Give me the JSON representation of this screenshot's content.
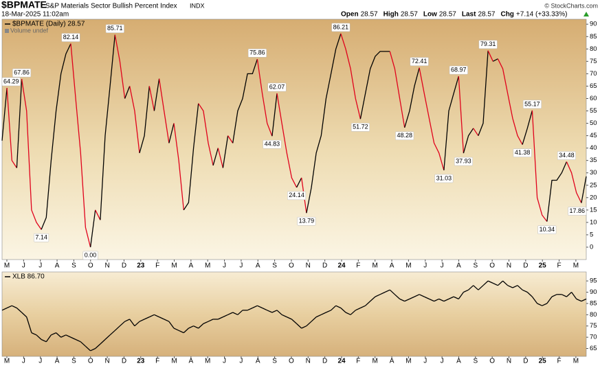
{
  "header": {
    "symbol": "$BPMATE",
    "name": "S&P Materials Sector Bullish Percent Index",
    "exchange": "INDX",
    "copyright": "© StockCharts.com",
    "date": "18-Mar-2025 11:02am",
    "quote": [
      [
        "Open",
        "28.57"
      ],
      [
        "High",
        "28.57"
      ],
      [
        "Low",
        "28.57"
      ],
      [
        "Last",
        "28.57"
      ],
      [
        "Chg",
        "+7.14 (+33.33%)"
      ]
    ]
  },
  "chart_data": [
    {
      "type": "line",
      "ylim": [
        -5,
        92
      ],
      "yticks": [
        0,
        5,
        10,
        15,
        20,
        25,
        30,
        35,
        40,
        45,
        50,
        55,
        60,
        65,
        70,
        75,
        80,
        85,
        90
      ],
      "xticks": [
        "M",
        "J",
        "J",
        "A",
        "S",
        "O",
        "N",
        "D",
        "23",
        "F",
        "M",
        "A",
        "M",
        "J",
        "J",
        "A",
        "S",
        "O",
        "N",
        "D",
        "24",
        "F",
        "M",
        "A",
        "M",
        "J",
        "J",
        "A",
        "S",
        "O",
        "N",
        "D",
        "25",
        "F",
        "M"
      ],
      "legend_note": "Volume undef",
      "series": [
        {
          "name": "$BPMATE (Daily) 28.57",
          "color": "#000000",
          "down_color": "#e0001b",
          "values": [
            43,
            64.29,
            35,
            32,
            67.86,
            55,
            15,
            10,
            7.14,
            12,
            35,
            55,
            70,
            78,
            82.14,
            60,
            38,
            8,
            0,
            15,
            11,
            45,
            65,
            85.71,
            75,
            60,
            65,
            55,
            38,
            45,
            65,
            55,
            68,
            55,
            42,
            50,
            35,
            15,
            18,
            40,
            58,
            55,
            42,
            33,
            40,
            32,
            45,
            42,
            55,
            60,
            70,
            70,
            75.86,
            62,
            50,
            44.83,
            62.07,
            50,
            38,
            28,
            24.14,
            28,
            13.79,
            24,
            38,
            45,
            60,
            70,
            80,
            86.21,
            80,
            72,
            60,
            51.72,
            62,
            72,
            77,
            79,
            79,
            79,
            72,
            60,
            48.28,
            55,
            65,
            72.41,
            62,
            52,
            42,
            38,
            31.03,
            55,
            62,
            68.97,
            37.93,
            45,
            48,
            45,
            50,
            79.31,
            75,
            76,
            72,
            62,
            52,
            45,
            41.38,
            48,
            55.17,
            20,
            13,
            10.34,
            27,
            27,
            30,
            34.48,
            30,
            22,
            17.86,
            28.57
          ],
          "value_labels": [
            null,
            "64.29",
            null,
            null,
            "67.86",
            null,
            null,
            null,
            "7.14",
            null,
            null,
            null,
            null,
            null,
            "82.14",
            null,
            null,
            null,
            "0.00",
            null,
            null,
            null,
            null,
            "85.71",
            null,
            null,
            null,
            null,
            null,
            null,
            null,
            null,
            null,
            null,
            null,
            null,
            null,
            null,
            null,
            null,
            null,
            null,
            null,
            null,
            null,
            null,
            null,
            null,
            null,
            null,
            null,
            null,
            "75.86",
            null,
            null,
            "44.83",
            "62.07",
            null,
            null,
            null,
            "24.14",
            null,
            "13.79",
            null,
            null,
            null,
            null,
            null,
            null,
            "86.21",
            null,
            null,
            null,
            "51.72",
            null,
            null,
            null,
            null,
            null,
            null,
            null,
            null,
            "48.28",
            null,
            null,
            "72.41",
            null,
            null,
            null,
            null,
            "31.03",
            null,
            null,
            "68.97",
            "37.93",
            null,
            null,
            null,
            null,
            "79.31",
            null,
            null,
            null,
            null,
            null,
            null,
            "41.38",
            null,
            "55.17",
            null,
            null,
            "10.34",
            null,
            null,
            null,
            "34.48",
            null,
            null,
            "17.86",
            null
          ]
        }
      ]
    },
    {
      "type": "line",
      "ylim": [
        61.5,
        99
      ],
      "yticks": [
        65,
        70,
        75,
        80,
        85,
        90,
        95
      ],
      "xticks": [
        "M",
        "J",
        "J",
        "A",
        "S",
        "O",
        "N",
        "D",
        "23",
        "F",
        "M",
        "A",
        "M",
        "J",
        "J",
        "A",
        "S",
        "O",
        "N",
        "D",
        "24",
        "F",
        "M",
        "A",
        "M",
        "J",
        "J",
        "A",
        "S",
        "O",
        "N",
        "D",
        "25",
        "F",
        "M"
      ],
      "series": [
        {
          "name": "XLB 86.70",
          "color": "#000000",
          "values": [
            82,
            83,
            84,
            83,
            81,
            79,
            72,
            71,
            69,
            68,
            71,
            72,
            70,
            71,
            70,
            69,
            68,
            66,
            64,
            65,
            67,
            69,
            71,
            73,
            75,
            77,
            78,
            75,
            77,
            78,
            79,
            80,
            79,
            78,
            77,
            74,
            73,
            72,
            74,
            75,
            74,
            76,
            77,
            78,
            78,
            79,
            80,
            81,
            80,
            82,
            82,
            83,
            84,
            83,
            82,
            81,
            82,
            80,
            79,
            78,
            76,
            74,
            75,
            77,
            79,
            80,
            81,
            82,
            84,
            83,
            81,
            80,
            82,
            83,
            84,
            86,
            88,
            89,
            90,
            91,
            89,
            87,
            86,
            87,
            88,
            89,
            88,
            87,
            86,
            87,
            86,
            87,
            88,
            87,
            90,
            91,
            93,
            91,
            93,
            95,
            94,
            93,
            95,
            93,
            92,
            93,
            91,
            90,
            88,
            85,
            84,
            85,
            88,
            89,
            89,
            88,
            90,
            87,
            86,
            87
          ]
        }
      ]
    }
  ]
}
